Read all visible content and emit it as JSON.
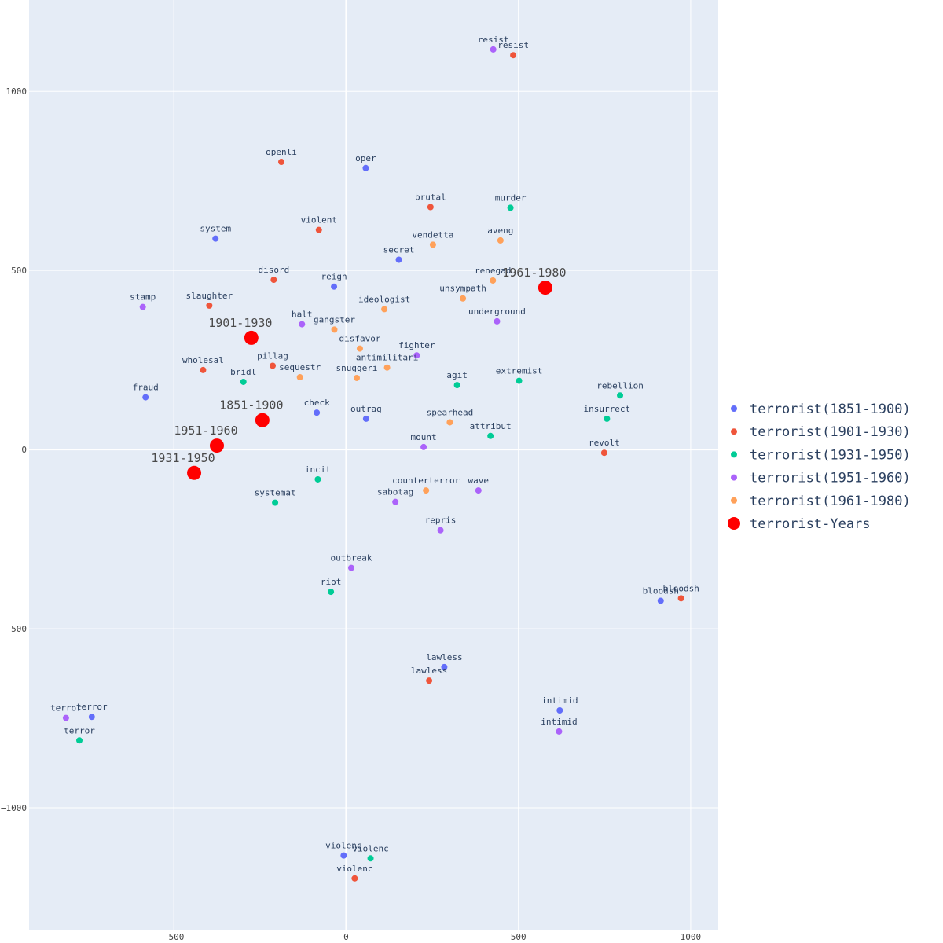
{
  "chart_data": {
    "type": "scatter",
    "title": "",
    "xlabel": "",
    "ylabel": "",
    "xlim": [
      -920,
      1080
    ],
    "ylim": [
      -1340,
      1255
    ],
    "x_ticks": [
      -500,
      0,
      500,
      1000
    ],
    "y_ticks": [
      -1000,
      -500,
      0,
      500,
      1000
    ],
    "grid": true,
    "legend_position": "right",
    "series": [
      {
        "name": "terrorist(1851-1900)",
        "color": "#636efa",
        "points": [
          {
            "label": "oper",
            "x": 57,
            "y": 786
          },
          {
            "label": "system",
            "x": -379,
            "y": 589
          },
          {
            "label": "secret",
            "x": 153,
            "y": 530
          },
          {
            "label": "reign",
            "x": -35,
            "y": 455
          },
          {
            "label": "fraud",
            "x": -582,
            "y": 146
          },
          {
            "label": "check",
            "x": -85,
            "y": 103
          },
          {
            "label": "outrag",
            "x": 58,
            "y": 86
          },
          {
            "label": "lawless",
            "x": 285,
            "y": -607
          },
          {
            "label": "bloodsh",
            "x": 913,
            "y": -422
          },
          {
            "label": "intimid",
            "x": 620,
            "y": -728
          },
          {
            "label": "terror",
            "x": -738,
            "y": -746
          },
          {
            "label": "violenc",
            "x": -7,
            "y": -1133
          }
        ]
      },
      {
        "name": "terrorist(1901-1930)",
        "color": "#ef553b",
        "points": [
          {
            "label": "resist",
            "x": 485,
            "y": 1101
          },
          {
            "label": "openli",
            "x": -188,
            "y": 803
          },
          {
            "label": "brutal",
            "x": 245,
            "y": 677
          },
          {
            "label": "violent",
            "x": -79,
            "y": 613
          },
          {
            "label": "disord",
            "x": -210,
            "y": 474
          },
          {
            "label": "slaughter",
            "x": -397,
            "y": 402
          },
          {
            "label": "wholesal",
            "x": -415,
            "y": 222
          },
          {
            "label": "pillag",
            "x": -213,
            "y": 234
          },
          {
            "label": "revolt",
            "x": 749,
            "y": -9
          },
          {
            "label": "bloodsh",
            "x": 972,
            "y": -415
          },
          {
            "label": "lawless",
            "x": 241,
            "y": -645
          },
          {
            "label": "violenc",
            "x": 25,
            "y": -1197
          }
        ]
      },
      {
        "name": "terrorist(1931-1950)",
        "color": "#00cc96",
        "points": [
          {
            "label": "murder",
            "x": 477,
            "y": 675
          },
          {
            "label": "bridl",
            "x": -298,
            "y": 189
          },
          {
            "label": "agit",
            "x": 322,
            "y": 180
          },
          {
            "label": "extremist",
            "x": 502,
            "y": 192
          },
          {
            "label": "rebellion",
            "x": 795,
            "y": 151
          },
          {
            "label": "insurrect",
            "x": 757,
            "y": 86
          },
          {
            "label": "attribut",
            "x": 419,
            "y": 38
          },
          {
            "label": "incit",
            "x": -82,
            "y": -83
          },
          {
            "label": "systemat",
            "x": -206,
            "y": -148
          },
          {
            "label": "riot",
            "x": -44,
            "y": -397
          },
          {
            "label": "terror",
            "x": -774,
            "y": -812
          },
          {
            "label": "violenc",
            "x": 71,
            "y": -1141
          }
        ]
      },
      {
        "name": "terrorist(1951-1960)",
        "color": "#ab63fa",
        "points": [
          {
            "label": "resist",
            "x": 427,
            "y": 1117
          },
          {
            "label": "halt",
            "x": -128,
            "y": 350
          },
          {
            "label": "underground",
            "x": 438,
            "y": 358
          },
          {
            "label": "fighter",
            "x": 205,
            "y": 263
          },
          {
            "label": "stamp",
            "x": -590,
            "y": 398
          },
          {
            "label": "mount",
            "x": 225,
            "y": 7
          },
          {
            "label": "wave",
            "x": 384,
            "y": -114
          },
          {
            "label": "sabotag",
            "x": 143,
            "y": -146
          },
          {
            "label": "repris",
            "x": 274,
            "y": -225
          },
          {
            "label": "outbreak",
            "x": 15,
            "y": -330
          },
          {
            "label": "intimid",
            "x": 618,
            "y": -787
          },
          {
            "label": "terror",
            "x": -813,
            "y": -749
          }
        ]
      },
      {
        "name": "terrorist(1961-1980)",
        "color": "#ffa15a",
        "points": [
          {
            "label": "vendetta",
            "x": 252,
            "y": 572
          },
          {
            "label": "aveng",
            "x": 448,
            "y": 584
          },
          {
            "label": "renegad",
            "x": 426,
            "y": 472
          },
          {
            "label": "unsympath",
            "x": 339,
            "y": 422
          },
          {
            "label": "ideologist",
            "x": 111,
            "y": 392
          },
          {
            "label": "gangster",
            "x": -34,
            "y": 335
          },
          {
            "label": "disfavor",
            "x": 40,
            "y": 282
          },
          {
            "label": "antimilitari",
            "x": 119,
            "y": 229
          },
          {
            "label": "sequestr",
            "x": -134,
            "y": 202
          },
          {
            "label": "snuggeri",
            "x": 31,
            "y": 200
          },
          {
            "label": "spearhead",
            "x": 301,
            "y": 76
          },
          {
            "label": "counterterror",
            "x": 232,
            "y": -114
          }
        ]
      },
      {
        "name": "terrorist-Years",
        "color": "#ff0000",
        "points": [
          {
            "label": "1961-1980",
            "x": 578,
            "y": 452
          },
          {
            "label": "1901-1930",
            "x": -275,
            "y": 312
          },
          {
            "label": "1851-1900",
            "x": -243,
            "y": 82
          },
          {
            "label": "1951-1960",
            "x": -375,
            "y": 11
          },
          {
            "label": "1931-1950",
            "x": -441,
            "y": -65
          }
        ]
      }
    ]
  }
}
